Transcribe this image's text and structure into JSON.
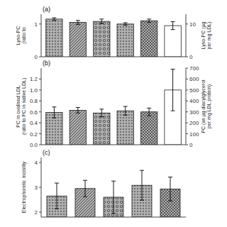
{
  "chart_data": [
    {
      "type": "bar",
      "title": "(a)",
      "categories": [
        null,
        null,
        null,
        null,
        null,
        null
      ],
      "values": [
        1.15,
        1.05,
        1.08,
        1.0,
        1.1,
        0.95
      ],
      "errors": [
        0.04,
        0.06,
        0.07,
        0.04,
        0.05,
        0.12
      ],
      "colors": [
        "#b0b0b0",
        "#b0b0b0",
        "#b0b0b0",
        "#b0b0b0",
        "#b0b0b0",
        "white"
      ],
      "ylim": [
        0,
        1.3
      ],
      "yticks": [
        0,
        1
      ],
      "ylabel": "Lyso-PC\n(ratio to",
      "y2lim": [
        0,
        13
      ],
      "y2ticks": [
        0,
        10
      ],
      "y2label": "Lyso-PC (µg\nper mg LDL)",
      "grid": false,
      "tick_labels": "y"
    },
    {
      "type": "bar",
      "title": "(b)",
      "categories": [
        null,
        null,
        null,
        null,
        null,
        null
      ],
      "values": [
        0.59,
        0.63,
        0.58,
        0.62,
        0.6,
        1.0
      ],
      "errors": [
        0.1,
        0.05,
        0.07,
        0.08,
        0.07,
        0.38
      ],
      "colors": [
        "#b0b0b0",
        "#b0b0b0",
        "#b0b0b0",
        "#b0b0b0",
        "#b0b0b0",
        "white"
      ],
      "ylim": [
        0.0,
        1.4
      ],
      "yticks": [
        {
          "value": 0,
          "label": "0.0"
        },
        0.2,
        0.4,
        0.6,
        0.8,
        {
          "value": 1,
          "label": "1.0"
        },
        1.2
      ],
      "ylabel": "PC in oxidised LDL\n(ratio to PC in native LDL)",
      "y2lim": [
        0,
        700
      ],
      "y2ticks": [
        0,
        100,
        200,
        300,
        400,
        500,
        600,
        700
      ],
      "y2label": "PC (as µg diacylglycerol\nper mg LDL protein)",
      "grid": false,
      "tick_labels": "y"
    },
    {
      "type": "bar",
      "title": "(c)",
      "categories": [
        null,
        null,
        null,
        null,
        null
      ],
      "values": [
        2.65,
        2.95,
        2.6,
        3.08,
        2.93
      ],
      "errors": [
        0.52,
        0.33,
        0.65,
        0.6,
        0.48
      ],
      "colors": [
        "#b0b0b0",
        "#b0b0b0",
        "#b0b0b0",
        "#b0b0b0",
        "#b0b0b0"
      ],
      "ylim": [
        1.8,
        4.2
      ],
      "yticks": [
        2,
        3,
        4
      ],
      "ylabel": "Electrophoretic mobility",
      "grid": false,
      "tick_labels": "y"
    }
  ]
}
